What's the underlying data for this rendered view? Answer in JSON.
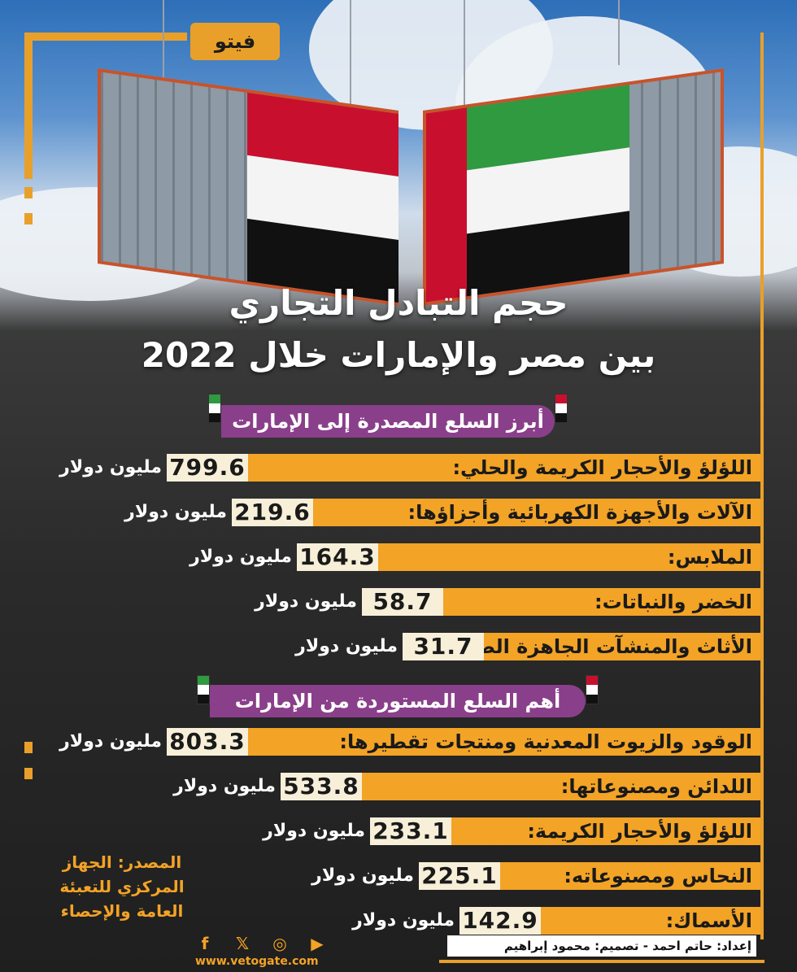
{
  "brand": {
    "logo_text": "فيتو",
    "website": "www.vetogate.com"
  },
  "title": {
    "line1": "حجم التبادل التجاري",
    "line2": "بين مصر والإمارات خلال 2022"
  },
  "exports": {
    "heading": "أبرز السلع المصدرة إلى الإمارات",
    "items": [
      {
        "label": "اللؤلؤ والأحجار الكريمة والحلي:",
        "value": "799.6",
        "unit": "مليون دولار"
      },
      {
        "label": "الآلات والأجهزة الكهربائية وأجزاؤها:",
        "value": "219.6",
        "unit": "مليون دولار"
      },
      {
        "label": "الملابس:",
        "value": "164.3",
        "unit": "مليون دولار"
      },
      {
        "label": "الخضر والنباتات:",
        "value": "58.7",
        "unit": "مليون دولار"
      },
      {
        "label": "الأثاث والمنشآت الجاهزة الصنع:",
        "value": "31.7",
        "unit": "مليون دولار"
      }
    ]
  },
  "imports": {
    "heading": "أهم السلع المستوردة من الإمارات",
    "items": [
      {
        "label": "الوقود والزيوت المعدنية ومنتجات تقطيرها:",
        "value": "803.3",
        "unit": "مليون دولار"
      },
      {
        "label": "اللدائن ومصنوعاتها:",
        "value": "533.8",
        "unit": "مليون دولار"
      },
      {
        "label": "اللؤلؤ والأحجار الكريمة:",
        "value": "233.1",
        "unit": "مليون دولار"
      },
      {
        "label": "النحاس ومصنوعاته:",
        "value": "225.1",
        "unit": "مليون دولار"
      },
      {
        "label": "الأسماك:",
        "value": "142.9",
        "unit": "مليون دولار"
      }
    ]
  },
  "source": "المصدر: الجهاز المركزي للتعبئة العامة والإحصاء",
  "credits": "إعداد: حاتم احمد - تصميم: محمود إبراهيم",
  "social_icons": [
    "facebook-icon",
    "twitter-icon",
    "instagram-icon",
    "youtube-icon"
  ],
  "colors": {
    "accent": "#f3a326",
    "banner": "#8a3f8a",
    "value_box": "#f8efd9"
  }
}
